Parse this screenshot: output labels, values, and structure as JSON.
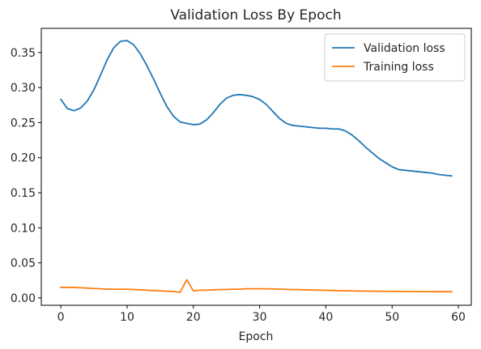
{
  "chart_data": {
    "type": "line",
    "title": "Validation Loss By Epoch",
    "xlabel": "Epoch",
    "ylabel": "",
    "xlim": [
      -2.95,
      61.95
    ],
    "ylim": [
      -0.0105,
      0.3845
    ],
    "xticks": [
      0,
      10,
      20,
      30,
      40,
      50,
      60
    ],
    "yticks": [
      0.0,
      0.05,
      0.1,
      0.15,
      0.2,
      0.25,
      0.3,
      0.35
    ],
    "ytick_labels": [
      "0.00",
      "0.05",
      "0.10",
      "0.15",
      "0.20",
      "0.25",
      "0.30",
      "0.35"
    ],
    "grid": false,
    "legend_position": "top-right",
    "x": [
      0,
      1,
      2,
      3,
      4,
      5,
      6,
      7,
      8,
      9,
      10,
      11,
      12,
      13,
      14,
      15,
      16,
      17,
      18,
      19,
      20,
      21,
      22,
      23,
      24,
      25,
      26,
      27,
      28,
      29,
      30,
      31,
      32,
      33,
      34,
      35,
      36,
      37,
      38,
      39,
      40,
      41,
      42,
      43,
      44,
      45,
      46,
      47,
      48,
      49,
      50,
      51,
      52,
      53,
      54,
      55,
      56,
      57,
      58,
      59
    ],
    "series": [
      {
        "name": "Validation loss",
        "color": "#1f77b4",
        "values": [
          0.283,
          0.27,
          0.267,
          0.271,
          0.281,
          0.297,
          0.318,
          0.34,
          0.357,
          0.366,
          0.367,
          0.361,
          0.348,
          0.331,
          0.312,
          0.292,
          0.273,
          0.259,
          0.251,
          0.249,
          0.247,
          0.248,
          0.254,
          0.264,
          0.276,
          0.285,
          0.289,
          0.29,
          0.289,
          0.287,
          0.283,
          0.276,
          0.266,
          0.256,
          0.249,
          0.246,
          0.245,
          0.244,
          0.243,
          0.242,
          0.242,
          0.241,
          0.241,
          0.238,
          0.232,
          0.224,
          0.215,
          0.207,
          0.199,
          0.193,
          0.187,
          0.183,
          0.182,
          0.181,
          0.18,
          0.179,
          0.178,
          0.176,
          0.175,
          0.174
        ]
      },
      {
        "name": "Training loss",
        "color": "#ff7f0e",
        "values": [
          0.015,
          0.015,
          0.015,
          0.0145,
          0.014,
          0.0135,
          0.013,
          0.0125,
          0.0125,
          0.0125,
          0.0125,
          0.012,
          0.0115,
          0.011,
          0.0105,
          0.01,
          0.0095,
          0.009,
          0.008,
          0.026,
          0.01,
          0.011,
          0.011,
          0.0115,
          0.012,
          0.012,
          0.0125,
          0.0125,
          0.013,
          0.013,
          0.013,
          0.013,
          0.0128,
          0.0125,
          0.0122,
          0.012,
          0.0118,
          0.0115,
          0.0112,
          0.011,
          0.0108,
          0.0105,
          0.0103,
          0.0102,
          0.01,
          0.0098,
          0.0097,
          0.0096,
          0.0095,
          0.0094,
          0.0093,
          0.0092,
          0.0091,
          0.009,
          0.009,
          0.009,
          0.0089,
          0.0089,
          0.0089,
          0.0089
        ]
      }
    ]
  }
}
